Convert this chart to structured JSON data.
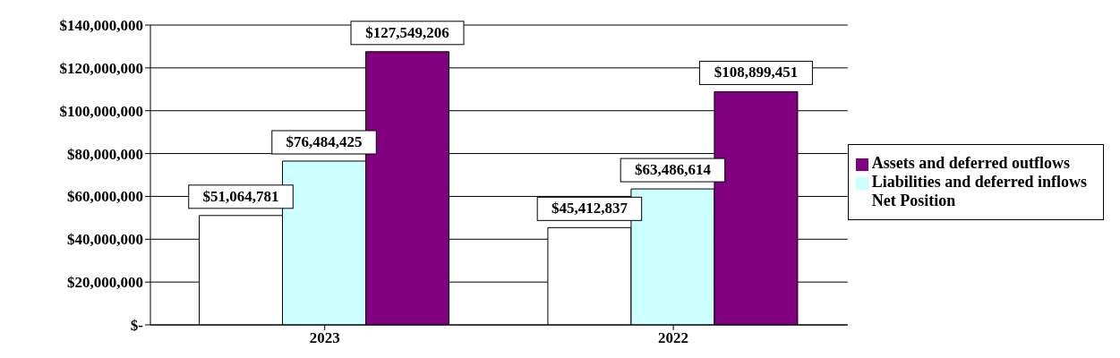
{
  "chart_data": {
    "type": "bar",
    "categories": [
      "2023",
      "2022"
    ],
    "series": [
      {
        "name": "Net Position",
        "color": "#ffffff",
        "values": [
          51064781,
          45412837
        ],
        "value_labels": [
          "$51,064,781",
          "$45,412,837"
        ]
      },
      {
        "name": "Liabilities and deferred inflows",
        "color": "#ccffff",
        "values": [
          76484425,
          63486614
        ],
        "value_labels": [
          "$76,484,425",
          "$63,486,614"
        ]
      },
      {
        "name": "Assets and deferred outflows",
        "color": "#800080",
        "values": [
          127549206,
          108899451
        ],
        "value_labels": [
          "$127,549,206",
          "$108,899,451"
        ]
      }
    ],
    "ylim": [
      0,
      140000000
    ],
    "yticks": [
      {
        "value": 0,
        "label": "$-"
      },
      {
        "value": 20000000,
        "label": "$20,000,000"
      },
      {
        "value": 40000000,
        "label": "$40,000,000"
      },
      {
        "value": 60000000,
        "label": "$60,000,000"
      },
      {
        "value": 80000000,
        "label": "$80,000,000"
      },
      {
        "value": 100000000,
        "label": "$100,000,000"
      },
      {
        "value": 120000000,
        "label": "$120,000,000"
      },
      {
        "value": 140000000,
        "label": "$140,000,000"
      }
    ],
    "grid": "y",
    "legend": "right"
  }
}
